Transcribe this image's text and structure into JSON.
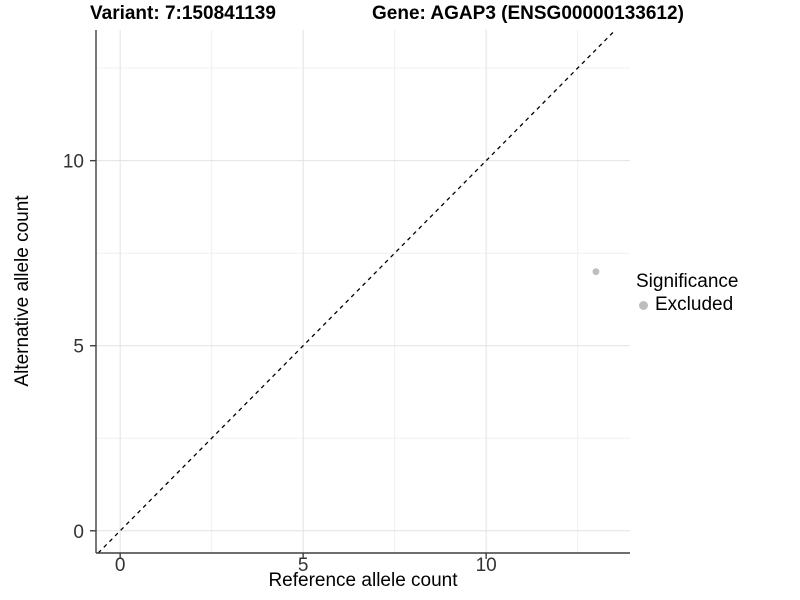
{
  "chart_data": {
    "type": "scatter",
    "titles": {
      "left": "Variant: 7:150841139",
      "right": "Gene: AGAP3 (ENSG00000133612)"
    },
    "xlabel": "Reference allele count",
    "ylabel": "Alternative allele count",
    "xlim": [
      -0.66,
      13.93
    ],
    "ylim": [
      -0.6,
      13.53
    ],
    "x_ticks": [
      0,
      5,
      10
    ],
    "y_ticks": [
      0,
      5,
      10
    ],
    "x_minor_gridlines": [
      2.5,
      7.5,
      12.5
    ],
    "y_minor_gridlines": [
      2.5,
      7.5,
      12.5
    ],
    "grid": "major+minor",
    "reference_line": {
      "kind": "identity",
      "equation": "y = x",
      "style": "dashed",
      "color": "#000000"
    },
    "series": [
      {
        "name": "Excluded",
        "color": "#bebebe",
        "points": [
          {
            "x": 13,
            "y": 7
          }
        ]
      }
    ],
    "legend": {
      "position": "right",
      "title": "Significance",
      "items": [
        {
          "label": "Excluded",
          "color": "#bebebe",
          "marker": "circle"
        }
      ]
    }
  },
  "colors": {
    "background": "#ffffff",
    "grid_major": "#e2e2e2",
    "grid_minor": "#f0f0f0",
    "axis_line": "#3f3f3f",
    "tick_label": "#333333"
  }
}
